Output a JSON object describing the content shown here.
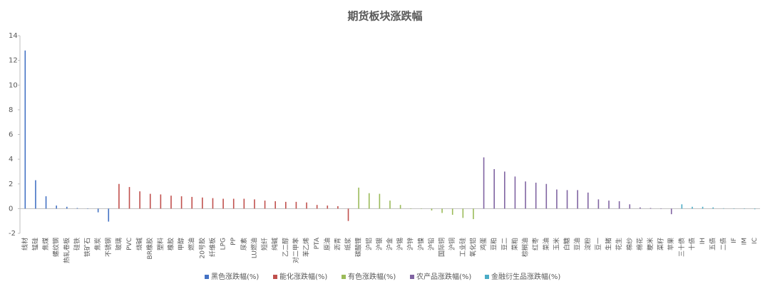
{
  "chart_data": {
    "type": "bar",
    "title": "期货板块涨跌幅",
    "categories": [
      "线材",
      "锰硅",
      "焦煤",
      "螺纹钢",
      "热轧卷板",
      "硅铁",
      "铁矿石",
      "焦炭",
      "不锈钢",
      "玻璃",
      "PVC",
      "烧碱",
      "BR橡胶",
      "塑料",
      "橡胶",
      "甲醇",
      "燃油",
      "20号胶",
      "纤维板",
      "LPG",
      "PP",
      "尿素",
      "LU燃油",
      "短纤",
      "纯碱",
      "乙二醇",
      "对二甲苯",
      "苯乙烯",
      "PTA",
      "原油",
      "沥青",
      "纸浆",
      "碳酸锂",
      "沪铝",
      "沪银",
      "沪金",
      "沪锡",
      "沪锌",
      "沪镍",
      "沪铅",
      "国际铜",
      "沪铜",
      "工业硅",
      "氧化铝",
      "鸡蛋",
      "豆粕",
      "豆二",
      "菜粕",
      "棕榈油",
      "红枣",
      "菜油",
      "玉米",
      "白糖",
      "豆油",
      "淀粉",
      "豆一",
      "生猪",
      "花生",
      "棉纱",
      "棉花",
      "粳米",
      "菜籽",
      "苹果",
      "三十债",
      "十债",
      "IH",
      "五债",
      "二债",
      "IF",
      "IM",
      "IC"
    ],
    "series": [
      {
        "name": "黑色涨跌幅(%)",
        "color": "#4472c4",
        "values": [
          12.8,
          2.3,
          1.0,
          0.25,
          0.15,
          0.05,
          0.02,
          -0.3,
          -1.05,
          null,
          null,
          null,
          null,
          null,
          null,
          null,
          null,
          null,
          null,
          null,
          null,
          null,
          null,
          null,
          null,
          null,
          null,
          null,
          null,
          null,
          null,
          null,
          null,
          null,
          null,
          null,
          null,
          null,
          null,
          null,
          null,
          null,
          null,
          null,
          null,
          null,
          null,
          null,
          null,
          null,
          null,
          null,
          null,
          null,
          null,
          null,
          null,
          null,
          null,
          null,
          null,
          null,
          null,
          null,
          null,
          null,
          null,
          null,
          null,
          null,
          null
        ]
      },
      {
        "name": "能化涨跌幅(%)",
        "color": "#c0504d",
        "values": [
          null,
          null,
          null,
          null,
          null,
          null,
          null,
          null,
          null,
          2.0,
          1.75,
          1.4,
          1.2,
          1.15,
          1.05,
          1.0,
          0.95,
          0.9,
          0.85,
          0.8,
          0.8,
          0.8,
          0.75,
          0.65,
          0.6,
          0.55,
          0.55,
          0.5,
          0.3,
          0.25,
          0.2,
          -1.0,
          null,
          null,
          null,
          null,
          null,
          null,
          null,
          null,
          null,
          null,
          null,
          null,
          null,
          null,
          null,
          null,
          null,
          null,
          null,
          null,
          null,
          null,
          null,
          null,
          null,
          null,
          null,
          null,
          null,
          null,
          null,
          null,
          null,
          null,
          null,
          null,
          null,
          null,
          null
        ]
      },
      {
        "name": "有色涨跌幅(%)",
        "color": "#9bbb59",
        "values": [
          null,
          null,
          null,
          null,
          null,
          null,
          null,
          null,
          null,
          null,
          null,
          null,
          null,
          null,
          null,
          null,
          null,
          null,
          null,
          null,
          null,
          null,
          null,
          null,
          null,
          null,
          null,
          null,
          null,
          null,
          null,
          null,
          1.7,
          1.25,
          1.2,
          0.65,
          0.3,
          0,
          0,
          -0.15,
          -0.35,
          -0.5,
          -0.75,
          -0.85,
          null,
          null,
          null,
          null,
          null,
          null,
          null,
          null,
          null,
          null,
          null,
          null,
          null,
          null,
          null,
          null,
          null,
          null,
          null,
          null,
          null,
          null,
          null,
          null,
          null,
          null,
          null
        ]
      },
      {
        "name": "农产品涨跌幅(%)",
        "color": "#8064a2",
        "values": [
          null,
          null,
          null,
          null,
          null,
          null,
          null,
          null,
          null,
          null,
          null,
          null,
          null,
          null,
          null,
          null,
          null,
          null,
          null,
          null,
          null,
          null,
          null,
          null,
          null,
          null,
          null,
          null,
          null,
          null,
          null,
          null,
          null,
          null,
          null,
          null,
          null,
          null,
          null,
          null,
          null,
          null,
          null,
          null,
          4.15,
          3.2,
          3.0,
          2.6,
          2.2,
          2.1,
          2.0,
          1.55,
          1.5,
          1.5,
          1.3,
          0.75,
          0.65,
          0.6,
          0.35,
          0.1,
          0.05,
          0,
          -0.45,
          null,
          null,
          null,
          null,
          null,
          null,
          null,
          null
        ]
      },
      {
        "name": "金融衍生品涨跌幅(%)",
        "color": "#4bacc6",
        "values": [
          null,
          null,
          null,
          null,
          null,
          null,
          null,
          null,
          null,
          null,
          null,
          null,
          null,
          null,
          null,
          null,
          null,
          null,
          null,
          null,
          null,
          null,
          null,
          null,
          null,
          null,
          null,
          null,
          null,
          null,
          null,
          null,
          null,
          null,
          null,
          null,
          null,
          null,
          null,
          null,
          null,
          null,
          null,
          null,
          null,
          null,
          null,
          null,
          null,
          null,
          null,
          null,
          null,
          null,
          null,
          null,
          null,
          null,
          null,
          null,
          null,
          null,
          null,
          0.35,
          0.15,
          0.15,
          0.1,
          0.03,
          0,
          0,
          -0.05
        ]
      }
    ],
    "ylim": [
      -2,
      14
    ],
    "yticks": [
      -2,
      0,
      2,
      4,
      6,
      8,
      10,
      12,
      14
    ],
    "grid": false,
    "legend": "bottom"
  }
}
